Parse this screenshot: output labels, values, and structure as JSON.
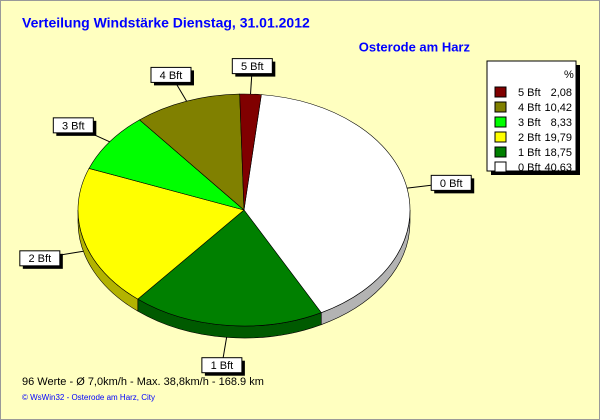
{
  "chart_data": {
    "type": "pie",
    "title": "Verteilung Windstärke  Dienstag, 31.01.2012",
    "subtitle": "Osterode am Harz",
    "categories": [
      "0 Bft",
      "1 Bft",
      "2 Bft",
      "3 Bft",
      "4 Bft",
      "5 Bft"
    ],
    "values": [
      40.63,
      18.75,
      19.79,
      8.33,
      10.42,
      2.08
    ],
    "value_labels": [
      "40,63",
      "18,75",
      "19,79",
      "8,33",
      "10,42",
      "2,08"
    ],
    "colors": [
      "#ffffff",
      "#008000",
      "#ffff00",
      "#00ff00",
      "#808000",
      "#800000"
    ],
    "legend_title": "%",
    "legend": "upper right",
    "footer": "96 Werte   -   Ø 7,0km/h  -  Max. 38,8km/h   -   168.9 km",
    "credit": "© WsWin32  -  Osterode am Harz, City"
  }
}
